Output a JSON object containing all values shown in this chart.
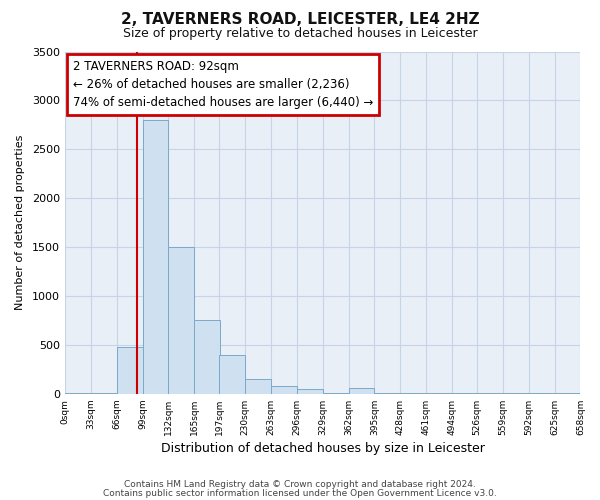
{
  "title": "2, TAVERNERS ROAD, LEICESTER, LE4 2HZ",
  "subtitle": "Size of property relative to detached houses in Leicester",
  "xlabel": "Distribution of detached houses by size in Leicester",
  "ylabel": "Number of detached properties",
  "bar_color": "#cfe0f0",
  "bar_edge_color": "#7aaac8",
  "bar_left_edges": [
    0,
    33,
    66,
    99,
    132,
    165,
    197,
    230,
    263,
    296,
    329,
    362,
    395,
    428,
    461,
    494,
    526,
    559,
    592,
    625
  ],
  "bar_widths": [
    33,
    33,
    33,
    33,
    33,
    33,
    33,
    33,
    33,
    33,
    33,
    33,
    33,
    33,
    33,
    33,
    33,
    33,
    33,
    33
  ],
  "bar_heights": [
    5,
    5,
    480,
    2800,
    1500,
    750,
    395,
    150,
    75,
    50,
    5,
    55,
    5,
    5,
    5,
    5,
    5,
    5,
    5,
    5
  ],
  "tick_labels": [
    "0sqm",
    "33sqm",
    "66sqm",
    "99sqm",
    "132sqm",
    "165sqm",
    "197sqm",
    "230sqm",
    "263sqm",
    "296sqm",
    "329sqm",
    "362sqm",
    "395sqm",
    "428sqm",
    "461sqm",
    "494sqm",
    "526sqm",
    "559sqm",
    "592sqm",
    "625sqm",
    "658sqm"
  ],
  "ylim": [
    0,
    3500
  ],
  "yticks": [
    0,
    500,
    1000,
    1500,
    2000,
    2500,
    3000,
    3500
  ],
  "vline_x": 92,
  "vline_color": "#cc0000",
  "annotation_box_text": "2 TAVERNERS ROAD: 92sqm\n← 26% of detached houses are smaller (2,236)\n74% of semi-detached houses are larger (6,440) →",
  "annotation_box_facecolor": "#ffffff",
  "annotation_box_edgecolor": "#cc0000",
  "footer_line1": "Contains HM Land Registry data © Crown copyright and database right 2024.",
  "footer_line2": "Contains public sector information licensed under the Open Government Licence v3.0.",
  "background_color": "#ffffff",
  "axes_facecolor": "#e8eff7",
  "grid_color": "#c5d5e5"
}
